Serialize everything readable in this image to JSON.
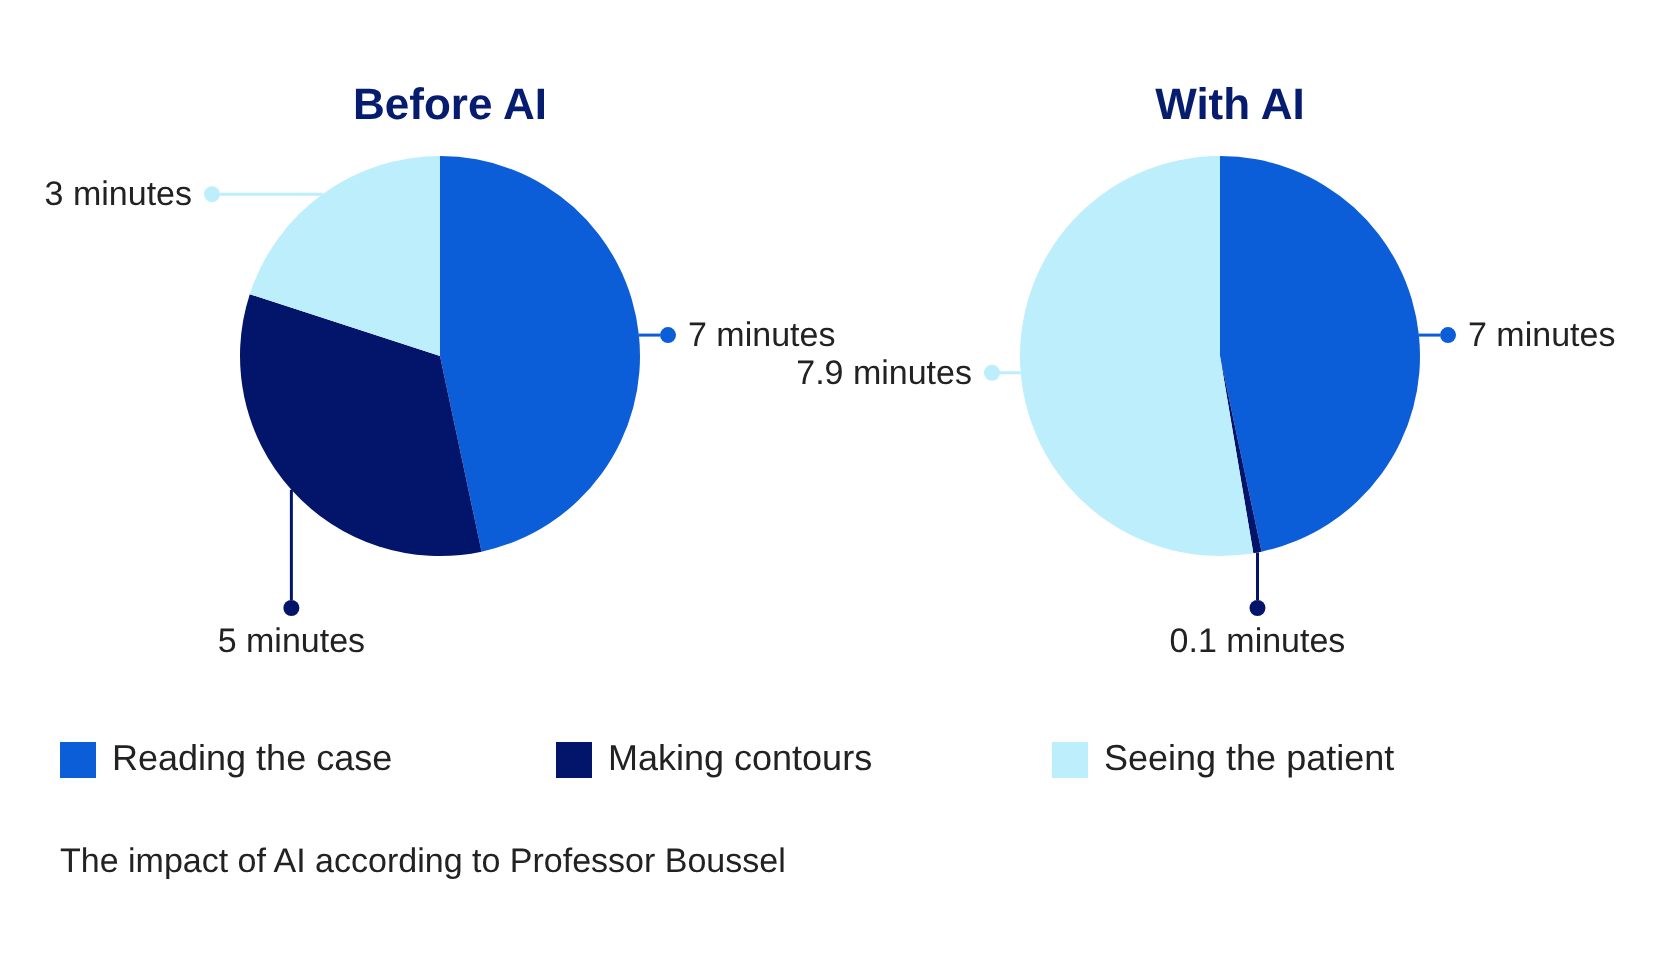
{
  "chart_data": {
    "type": "pie",
    "categories": [
      "Reading the case",
      "Making contours",
      "Seeing the patient"
    ],
    "colors": [
      "#0b5ed7",
      "#03156b",
      "#bdeefc"
    ],
    "series": [
      {
        "name": "Before AI",
        "values": [
          7,
          5,
          3
        ],
        "value_labels": [
          "7 minutes",
          "5 minutes",
          "3 minutes"
        ]
      },
      {
        "name": "With AI",
        "values": [
          7,
          0.1,
          7.9
        ],
        "value_labels": [
          "7 minutes",
          "0.1 minutes",
          "7.9 minutes"
        ]
      }
    ],
    "legend": "bottom",
    "annotations": [
      "The impact of AI according to Professor Boussel"
    ]
  }
}
